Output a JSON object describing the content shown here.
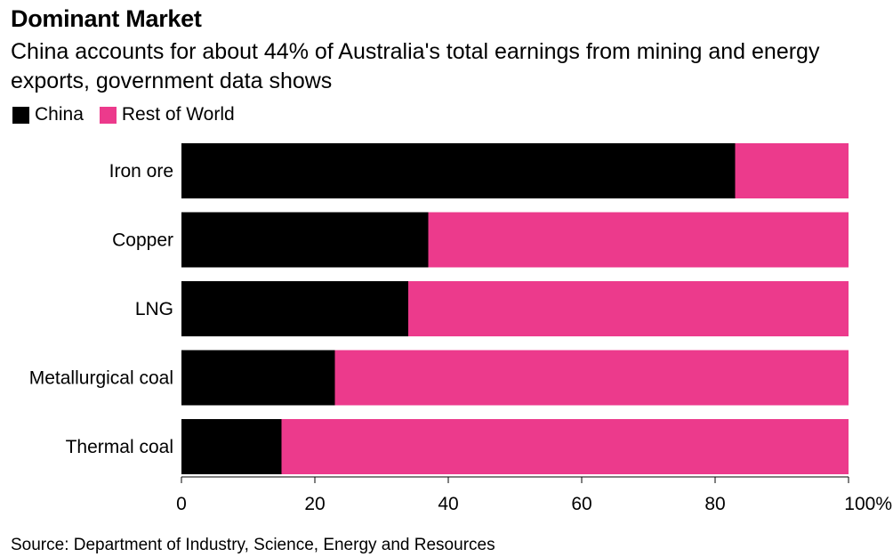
{
  "header": {
    "title": "Dominant Market",
    "subtitle": "China accounts for about 44% of Australia's total earnings from mining and energy exports, government data shows"
  },
  "legend": {
    "items": [
      {
        "label": "China",
        "color": "#000000"
      },
      {
        "label": "Rest of World",
        "color": "#ec3a8c"
      }
    ]
  },
  "chart_data": {
    "type": "bar",
    "orientation": "horizontal",
    "stacked": true,
    "title": "Dominant Market",
    "subtitle": "China accounts for about 44% of Australia's total earnings from mining and energy exports, government data shows",
    "categories": [
      "Iron ore",
      "Copper",
      "LNG",
      "Metallurgical coal",
      "Thermal coal"
    ],
    "series": [
      {
        "name": "China",
        "color": "#000000",
        "values": [
          83,
          37,
          34,
          23,
          15
        ]
      },
      {
        "name": "Rest of World",
        "color": "#ec3a8c",
        "values": [
          17,
          63,
          66,
          77,
          85
        ]
      }
    ],
    "xlim": [
      0,
      100
    ],
    "xticks": [
      0,
      20,
      40,
      60,
      80,
      100
    ],
    "xtick_labels": [
      "0",
      "20",
      "40",
      "60",
      "80",
      "100%"
    ],
    "xlabel": "",
    "ylabel": "",
    "legend_position": "top-left",
    "grid": false
  },
  "footer": {
    "source": "Source: Department of Industry, Science, Energy and Resources"
  }
}
